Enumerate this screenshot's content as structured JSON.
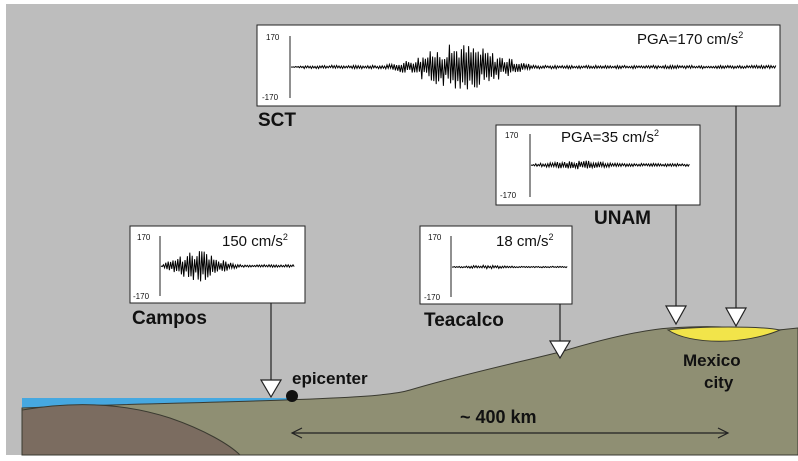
{
  "stations": [
    {
      "id": "sct",
      "name": "SCT",
      "pga": "PGA=170 cm/s",
      "pga_unit_sup": "2",
      "scale_top": "170",
      "scale_bottom": "-170",
      "peak_fraction": 0.8
    },
    {
      "id": "unam",
      "name": "UNAM",
      "pga": "PGA=35 cm/s",
      "pga_unit_sup": "2",
      "scale_top": "170",
      "scale_bottom": "-170",
      "peak_fraction": 0.15
    },
    {
      "id": "campos",
      "name": "Campos",
      "pga": "150 cm/s",
      "pga_unit_sup": "2",
      "scale_top": "170",
      "scale_bottom": "-170",
      "peak_fraction": 0.55
    },
    {
      "id": "teacalco",
      "name": "Teacalco",
      "pga": "18 cm/s",
      "pga_unit_sup": "2",
      "scale_top": "170",
      "scale_bottom": "-170",
      "peak_fraction": 0.06
    }
  ],
  "labels": {
    "epicenter": "epicenter",
    "city_line1": "Mexico",
    "city_line2": "city",
    "distance": "~ 400 km"
  },
  "colors": {
    "background": "#bdbdbd",
    "ground": "#8f8f73",
    "ground_dark": "#7b6c60",
    "sea": "#46a8e0",
    "basin": "#f2e44a",
    "trace": "#000000"
  }
}
